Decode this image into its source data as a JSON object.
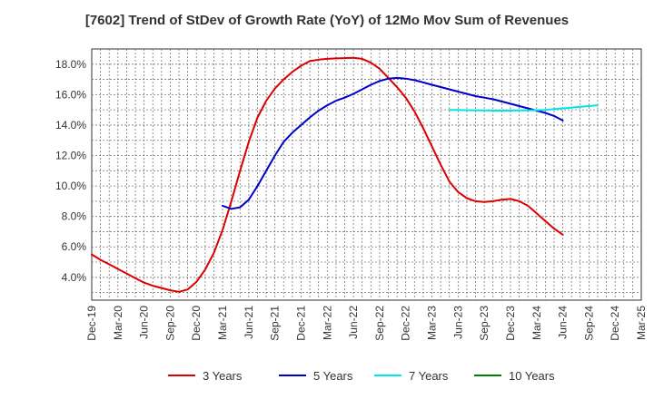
{
  "chart_data": {
    "type": "line",
    "title": "[7602]  Trend of StDev of Growth Rate (YoY) of 12Mo Mov Sum of Revenues",
    "xlabel": "",
    "ylabel": "",
    "ylim": [
      2.5,
      19.0
    ],
    "y_ticks": [
      4.0,
      6.0,
      8.0,
      10.0,
      12.0,
      14.0,
      16.0,
      18.0
    ],
    "y_tick_labels": [
      "4.0%",
      "6.0%",
      "8.0%",
      "10.0%",
      "12.0%",
      "14.0%",
      "16.0%",
      "18.0%"
    ],
    "x_tick_labels": [
      "Dec-19",
      "Mar-20",
      "Jun-20",
      "Sep-20",
      "Dec-20",
      "Mar-21",
      "Jun-21",
      "Sep-21",
      "Dec-21",
      "Mar-22",
      "Jun-22",
      "Sep-22",
      "Dec-22",
      "Mar-23",
      "Jun-23",
      "Sep-23",
      "Dec-23",
      "Mar-24",
      "Jun-24",
      "Sep-24",
      "Dec-24",
      "Mar-25"
    ],
    "x_count": 64,
    "grid": true,
    "legend_position": "bottom",
    "series": [
      {
        "name": "3 Years",
        "color": "#dd0000",
        "start_index": 0,
        "values": [
          5.5,
          5.15,
          4.85,
          4.55,
          4.25,
          3.95,
          3.65,
          3.45,
          3.3,
          3.15,
          3.05,
          3.2,
          3.7,
          4.5,
          5.6,
          7.1,
          9.0,
          11.0,
          12.9,
          14.5,
          15.6,
          16.4,
          17.0,
          17.5,
          17.9,
          18.2,
          18.3,
          18.35,
          18.38,
          18.4,
          18.42,
          18.35,
          18.1,
          17.7,
          17.1,
          16.5,
          15.8,
          14.9,
          13.8,
          12.6,
          11.4,
          10.3,
          9.6,
          9.2,
          9.0,
          8.95,
          9.0,
          9.1,
          9.15,
          9.0,
          8.7,
          8.2,
          7.7,
          7.2,
          6.8
        ]
      },
      {
        "name": "5 Years",
        "color": "#0000cc",
        "start_index": 15,
        "values": [
          8.7,
          8.5,
          8.6,
          9.1,
          10.0,
          11.0,
          12.0,
          12.9,
          13.5,
          14.0,
          14.5,
          14.95,
          15.3,
          15.6,
          15.8,
          16.05,
          16.35,
          16.65,
          16.9,
          17.05,
          17.1,
          17.05,
          16.95,
          16.8,
          16.65,
          16.5,
          16.35,
          16.2,
          16.05,
          15.9,
          15.8,
          15.7,
          15.55,
          15.4,
          15.25,
          15.1,
          14.95,
          14.8,
          14.6,
          14.3
        ]
      },
      {
        "name": "7 Years",
        "color": "#00e5e5",
        "start_index": 41,
        "values": [
          15.0,
          15.0,
          14.98,
          14.97,
          14.96,
          14.95,
          14.95,
          14.95,
          14.96,
          14.97,
          14.98,
          15.0,
          15.05,
          15.1,
          15.15,
          15.2,
          15.25,
          15.3
        ]
      },
      {
        "name": "10 Years",
        "color": "#008000",
        "start_index": 0,
        "values": []
      }
    ]
  }
}
